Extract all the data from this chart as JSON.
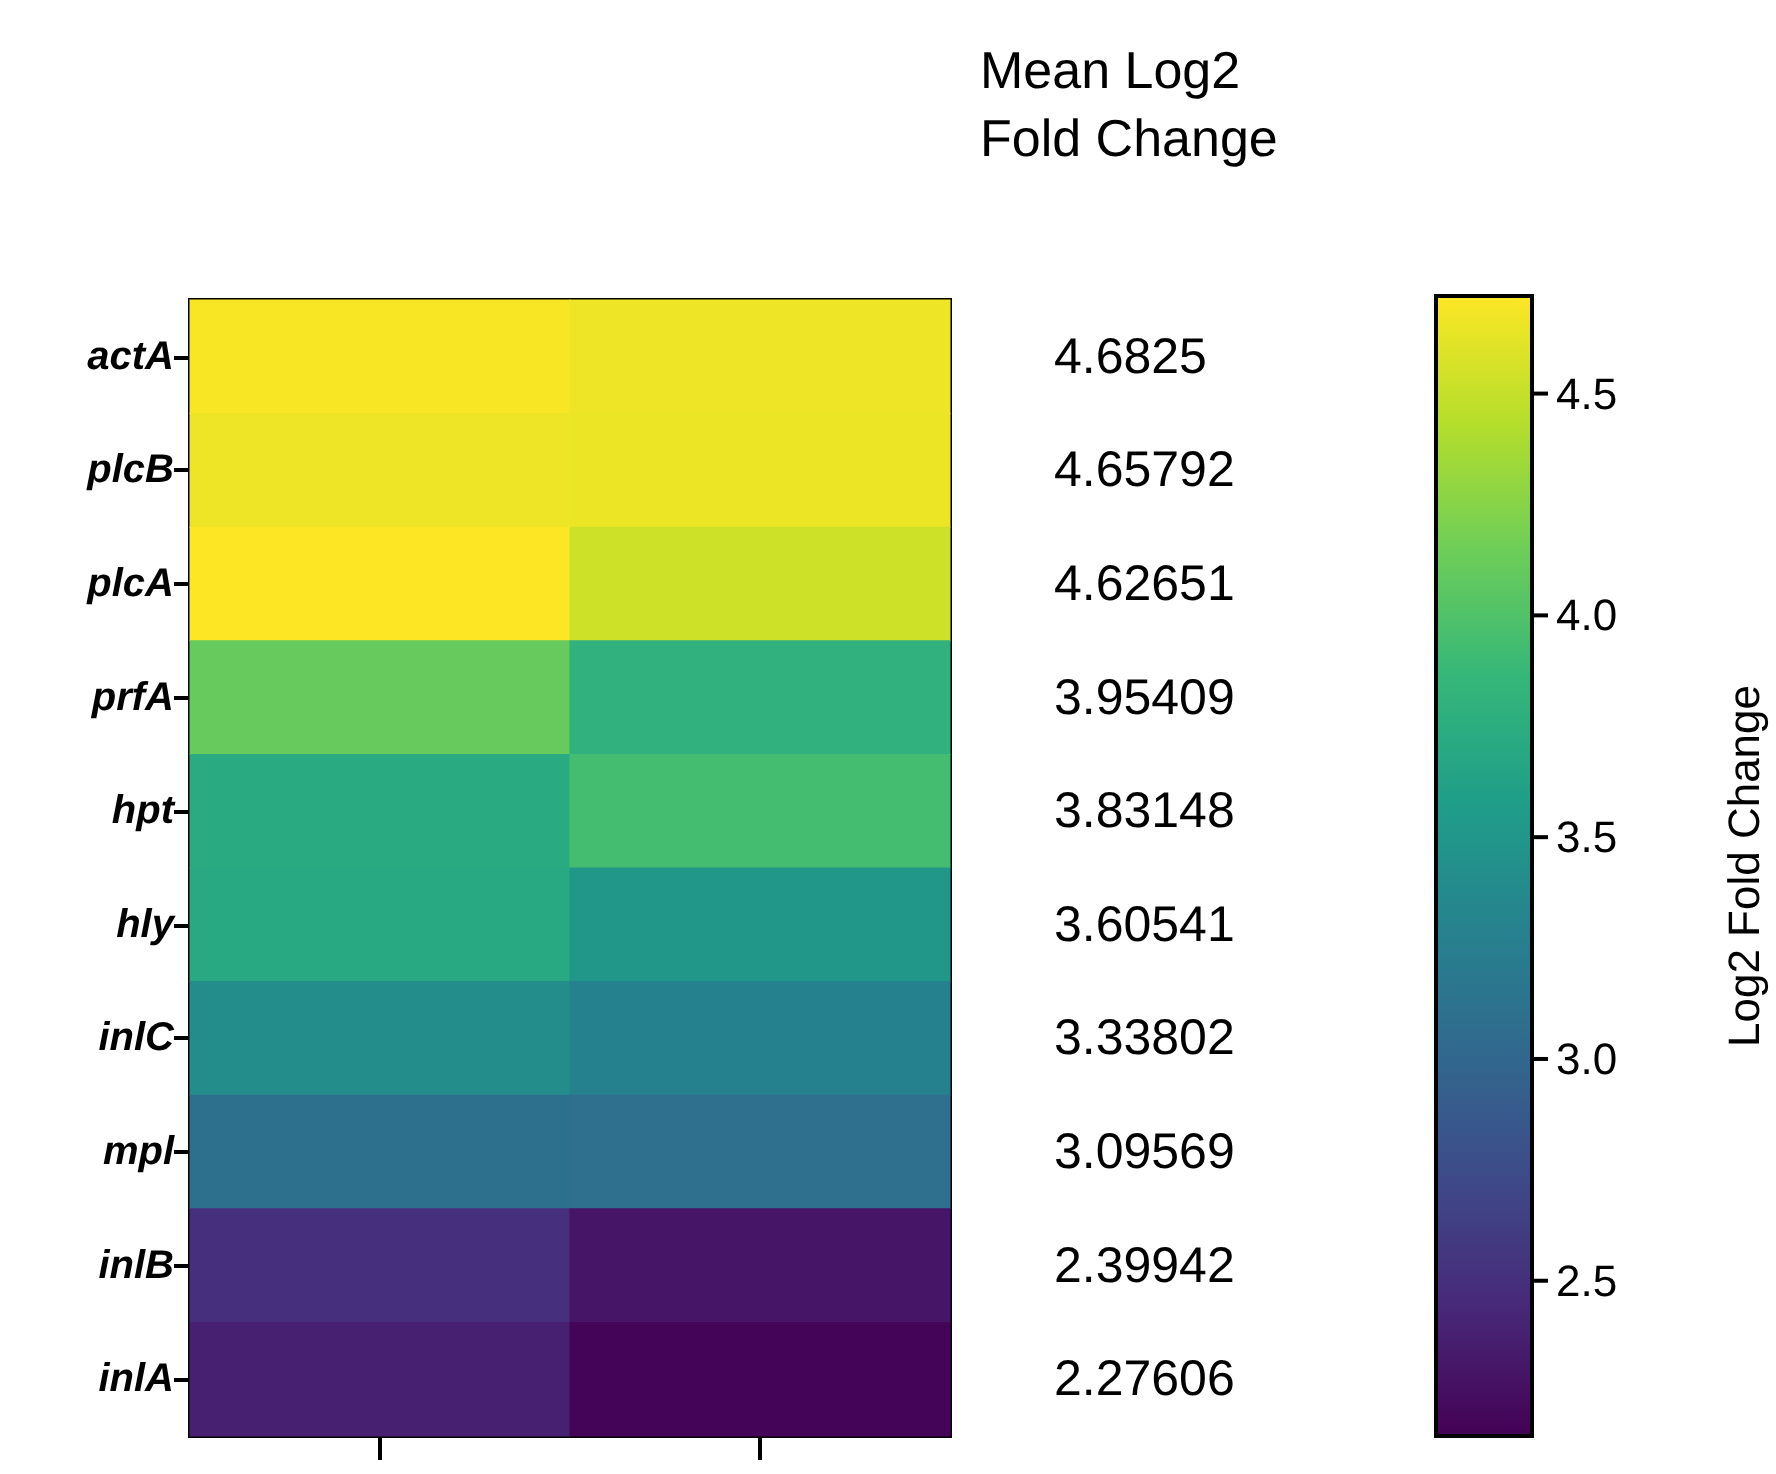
{
  "chart_data": {
    "type": "heatmap",
    "categories": [
      null,
      null
    ],
    "y_categories": [
      "actA",
      "plcB",
      "plcA",
      "prfA",
      "hpt",
      "hly",
      "inlC",
      "mpl",
      "inlB",
      "inlA"
    ],
    "y2_categories": [
      "4.6825",
      "4.65792",
      "4.62651",
      "3.95409",
      "3.83148",
      "3.60541",
      "3.33802",
      "3.09569",
      "2.39942",
      "2.27606"
    ],
    "cells": [
      [
        4.7,
        4.66
      ],
      [
        4.66,
        4.65
      ],
      [
        4.72,
        4.53
      ],
      [
        4.11,
        3.8
      ],
      [
        3.72,
        3.94
      ],
      [
        3.7,
        3.51
      ],
      [
        3.4,
        3.28
      ],
      [
        3.1,
        3.09
      ],
      [
        2.5,
        2.3
      ],
      [
        2.38,
        2.17
      ]
    ],
    "clim": [
      2.15,
      4.72
    ],
    "cticks": [
      2.5,
      {
        "value": 3,
        "label": "3.0"
      },
      3.5,
      {
        "value": 4,
        "label": "4.0"
      },
      4.5
    ],
    "clabel": "Log2 Fold Change",
    "annotations": [
      "Mean Log2\nFold Change"
    ],
    "tick_labels": "y"
  }
}
